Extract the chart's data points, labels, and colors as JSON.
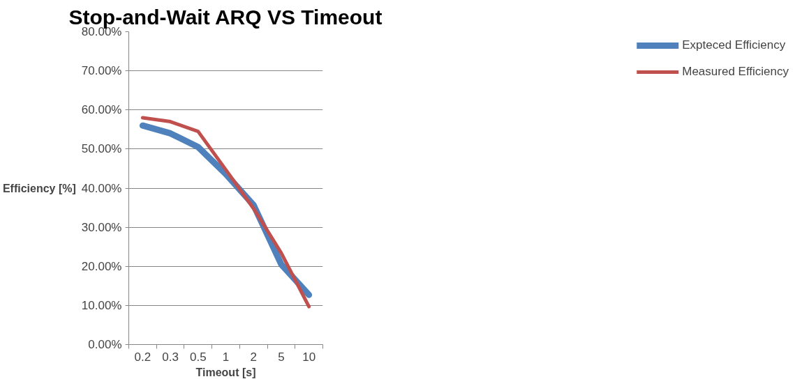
{
  "chart_data": {
    "type": "line",
    "title": "Stop-and-Wait ARQ VS Timeout",
    "xlabel": "Timeout [s]",
    "ylabel": "Efficiency [%]",
    "categories": [
      "0.2",
      "0.3",
      "0.5",
      "1",
      "2",
      "5",
      "10"
    ],
    "series": [
      {
        "name": "Expteced Efficiency",
        "color": "#4f81bd",
        "values": [
          56,
          54,
          50.5,
          43.6,
          35.7,
          20.5,
          12.7
        ]
      },
      {
        "name": "Measured Efficiency",
        "color": "#c0504d",
        "values": [
          58,
          57,
          54.5,
          44.7,
          34.8,
          23.4,
          9.7
        ]
      }
    ],
    "ylim": [
      0,
      80
    ],
    "yticks": [
      {
        "value": 0,
        "label": "0.00%"
      },
      {
        "value": 10,
        "label": "10.00%"
      },
      {
        "value": 20,
        "label": "20.00%"
      },
      {
        "value": 30,
        "label": "30.00%"
      },
      {
        "value": 40,
        "label": "40.00%"
      },
      {
        "value": 50,
        "label": "50.00%"
      },
      {
        "value": 60,
        "label": "60.00%"
      },
      {
        "value": 70,
        "label": "70.00%"
      },
      {
        "value": 80,
        "label": "80.00%"
      }
    ],
    "grid": "y",
    "legend": "right",
    "marker": "none",
    "line_style": "solid"
  }
}
